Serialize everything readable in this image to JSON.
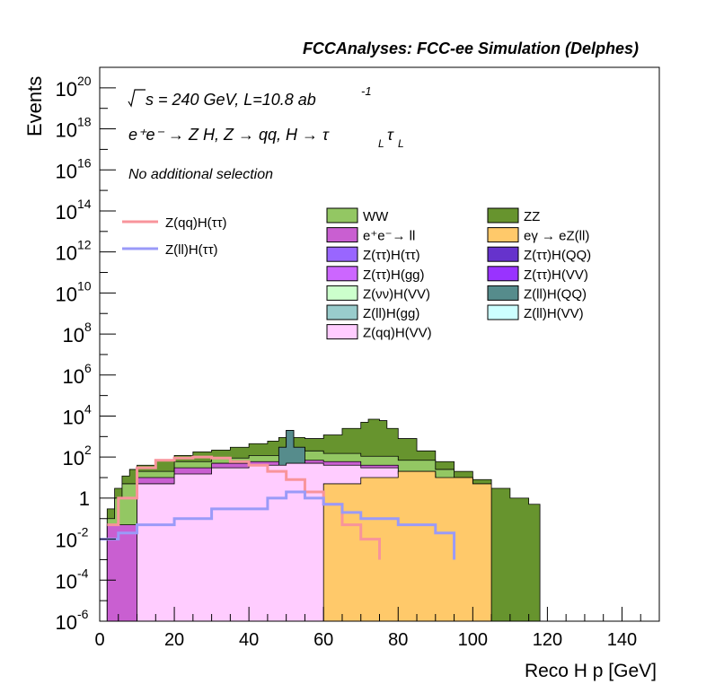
{
  "header": {
    "title": "FCCAnalyses: FCC-ee Simulation (Delphes)",
    "sqrt_label": "s = 240 GeV, L=10.8 ab",
    "lumi_exp": "-1",
    "process_text": "e⁺e⁻ → Z H, Z → qq, H → τ",
    "tau_sub1": "L",
    "tau2": "τ",
    "tau_sub2": "L",
    "selection": "No additional selection"
  },
  "chart_data": {
    "type": "histogram",
    "xlabel": "Reco H p [GeV]",
    "ylabel": "Events",
    "xlim": [
      0,
      150
    ],
    "ylim": [
      1e-06,
      1e+21
    ],
    "y_scale": "log",
    "x_ticks": [
      "0",
      "20",
      "40",
      "60",
      "80",
      "100",
      "120",
      "140"
    ],
    "y_tick_exponents": [
      20,
      18,
      16,
      14,
      12,
      10,
      8,
      6,
      4,
      2,
      0,
      -2,
      -4,
      -6
    ],
    "y_tick_labels": {
      "2": "10",
      "0": "1",
      "-2": "10",
      "-4": "10",
      "-6": "10"
    },
    "grid": false,
    "stack_order_note": "background stack drawn outer to inner",
    "stack": [
      {
        "name": "ZZ",
        "color": "#67942e",
        "x": [
          2,
          4,
          6,
          8,
          10,
          15,
          20,
          25,
          30,
          35,
          40,
          45,
          48,
          50,
          52,
          55,
          60,
          65,
          70,
          72,
          75,
          77,
          80,
          85,
          90,
          95,
          100,
          105,
          110,
          115,
          118
        ],
        "y": [
          0.3,
          3,
          12,
          25,
          40,
          70,
          120,
          180,
          220,
          300,
          450,
          600,
          900,
          2000,
          900,
          800,
          1200,
          2500,
          5000,
          7000,
          6000,
          2500,
          800,
          200,
          60,
          20,
          8,
          3,
          1,
          0.5,
          0.001
        ]
      },
      {
        "name": "WW",
        "color": "#93c763",
        "x": [
          2,
          4,
          6,
          10,
          20,
          30,
          40,
          48,
          50,
          52,
          55,
          60,
          70,
          80,
          90,
          95,
          100,
          105
        ],
        "y": [
          0.1,
          1,
          5,
          20,
          60,
          90,
          120,
          300,
          800,
          300,
          200,
          150,
          110,
          70,
          25,
          10,
          4,
          1
        ]
      },
      {
        "name": "e⁺e⁻→ ll",
        "color": "#c95fd1",
        "x": [
          2,
          10,
          20,
          30,
          40,
          50,
          60,
          70,
          80,
          90
        ],
        "y": [
          0.05,
          10,
          30,
          50,
          60,
          70,
          60,
          40,
          20,
          5
        ]
      },
      {
        "name": "Z(ll)H(QQ)",
        "color": "#568c8c",
        "x": [
          45,
          48,
          50,
          52,
          55
        ],
        "y": [
          20,
          300,
          2000,
          300,
          20
        ]
      },
      {
        "name": "Z(qq)H(VV)",
        "color": "#ffccff",
        "x": [
          10,
          20,
          30,
          40,
          50,
          60,
          70,
          80,
          90,
          100
        ],
        "y": [
          5,
          15,
          30,
          40,
          50,
          40,
          30,
          15,
          5,
          1
        ]
      },
      {
        "name": "eγ → eZ(ll)",
        "color": "#ffc96a",
        "x": [
          60,
          70,
          80,
          90,
          100,
          105
        ],
        "y": [
          5,
          10,
          20,
          10,
          5,
          0.5
        ]
      }
    ],
    "lines": [
      {
        "name": "Z(qq)H(ττ)",
        "color": "#f8949b",
        "x": [
          2,
          5,
          10,
          15,
          20,
          25,
          30,
          35,
          40,
          45,
          50,
          55,
          60,
          65,
          70,
          75
        ],
        "y": [
          0.05,
          1,
          30,
          70,
          90,
          100,
          90,
          60,
          40,
          20,
          8,
          2,
          0.5,
          0.05,
          0.01,
          0.001
        ]
      },
      {
        "name": "Z(ll)H(ττ)",
        "color": "#9a9af8",
        "x": [
          0,
          5,
          10,
          20,
          30,
          40,
          45,
          50,
          55,
          60,
          65,
          70,
          80,
          90,
          95
        ],
        "y": [
          0.01,
          0.02,
          0.05,
          0.1,
          0.3,
          0.3,
          1,
          2,
          1,
          0.5,
          0.2,
          0.1,
          0.05,
          0.02,
          0.001
        ]
      }
    ],
    "legend_left": [
      "Z(qq)H(ττ)",
      "Z(ll)H(ττ)"
    ],
    "legend_col1": [
      {
        "name": "WW",
        "color": "#93c763"
      },
      {
        "name": "e⁺e⁻→ ll",
        "color": "#c95fd1"
      },
      {
        "name": "Z(ττ)H(ττ)",
        "color": "#9966ff"
      },
      {
        "name": "Z(ττ)H(gg)",
        "color": "#cc66ff"
      },
      {
        "name": "Z(νν)H(VV)",
        "color": "#ccffcc"
      },
      {
        "name": "Z(ll)H(gg)",
        "color": "#99cccc"
      },
      {
        "name": "Z(qq)H(VV)",
        "color": "#ffccff"
      }
    ],
    "legend_col2": [
      {
        "name": "ZZ",
        "color": "#67942e"
      },
      {
        "name": "eγ → eZ(ll)",
        "color": "#ffc96a"
      },
      {
        "name": "Z(ττ)H(QQ)",
        "color": "#6633cc"
      },
      {
        "name": "Z(ττ)H(VV)",
        "color": "#9933ff"
      },
      {
        "name": "Z(ll)H(QQ)",
        "color": "#568c8c"
      },
      {
        "name": "Z(ll)H(VV)",
        "color": "#ccffff"
      }
    ]
  }
}
